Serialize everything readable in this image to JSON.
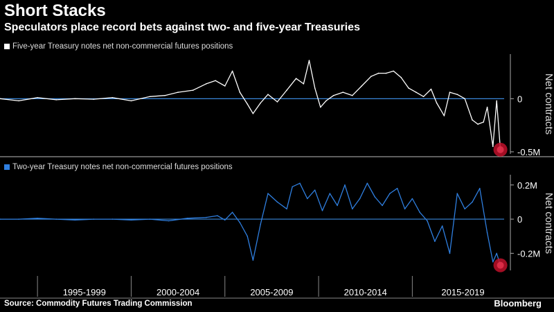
{
  "title": "Short Stacks",
  "subtitle": "Speculators place record bets against two- and five-year Treasuries",
  "source": "Source: Commodity Futures Trading Commission",
  "brand": "Bloomberg",
  "colors": {
    "background": "#000000",
    "five_year": "#ffffff",
    "two_year": "#2f7fe0",
    "zero_line": "#3a86d9",
    "marker": "#c0102a"
  },
  "chart_data": [
    {
      "type": "line",
      "legend": "Five-year Treasury notes net non-commercial futures positions",
      "ylabel": "Net contracts",
      "yticks": [
        {
          "value": 0,
          "label": "0"
        },
        {
          "value": -500000,
          "label": "-0.5M"
        }
      ],
      "ylim": [
        -520000,
        420000
      ],
      "x_range": [
        1992.0,
        2018.9
      ],
      "x": [
        1992.0,
        1993.0,
        1994.0,
        1995.0,
        1996.0,
        1997.0,
        1998.0,
        1999.0,
        2000.0,
        2000.8,
        2001.5,
        2002.3,
        2003.0,
        2003.5,
        2004.0,
        2004.4,
        2004.8,
        2005.2,
        2005.5,
        2005.9,
        2006.3,
        2006.8,
        2007.3,
        2007.8,
        2008.2,
        2008.5,
        2008.8,
        2009.1,
        2009.4,
        2009.8,
        2010.3,
        2010.8,
        2011.3,
        2011.8,
        2012.2,
        2012.6,
        2013.0,
        2013.4,
        2013.8,
        2014.2,
        2014.6,
        2015.0,
        2015.3,
        2015.7,
        2016.0,
        2016.4,
        2016.8,
        2017.2,
        2017.5,
        2017.8,
        2018.0,
        2018.3,
        2018.5,
        2018.7
      ],
      "values": [
        0,
        -20000,
        10000,
        -10000,
        0,
        -5000,
        10000,
        -20000,
        20000,
        30000,
        60000,
        80000,
        140000,
        170000,
        120000,
        260000,
        60000,
        -50000,
        -140000,
        -40000,
        40000,
        -30000,
        80000,
        190000,
        140000,
        360000,
        100000,
        -80000,
        -20000,
        30000,
        60000,
        30000,
        120000,
        210000,
        240000,
        240000,
        260000,
        200000,
        100000,
        60000,
        20000,
        90000,
        -40000,
        -160000,
        60000,
        40000,
        0,
        -200000,
        -240000,
        -220000,
        -80000,
        -450000,
        -20000,
        -480000
      ],
      "marker": {
        "x": 2018.7,
        "value": -480000
      }
    },
    {
      "type": "line",
      "legend": "Two-year Treasury notes net non-commercial futures positions",
      "ylabel": "Net contracts",
      "yticks": [
        {
          "value": 200000,
          "label": "0.2M"
        },
        {
          "value": 0,
          "label": "0"
        },
        {
          "value": -200000,
          "label": "-0.2M"
        }
      ],
      "ylim": [
        -300000,
        260000
      ],
      "x_range": [
        1992.0,
        2018.9
      ],
      "x": [
        1992.0,
        1993.0,
        1994.0,
        1995.0,
        1996.0,
        1997.0,
        1998.0,
        1999.0,
        2000.0,
        2001.0,
        2002.0,
        2003.0,
        2003.6,
        2004.0,
        2004.4,
        2004.8,
        2005.2,
        2005.5,
        2005.9,
        2006.3,
        2006.8,
        2007.3,
        2007.6,
        2008.0,
        2008.4,
        2008.8,
        2009.2,
        2009.6,
        2010.0,
        2010.4,
        2010.8,
        2011.2,
        2011.6,
        2012.0,
        2012.4,
        2012.8,
        2013.2,
        2013.6,
        2014.0,
        2014.4,
        2014.8,
        2015.2,
        2015.6,
        2016.0,
        2016.4,
        2016.8,
        2017.2,
        2017.6,
        2018.0,
        2018.3,
        2018.5,
        2018.7
      ],
      "values": [
        0,
        0,
        5000,
        0,
        -5000,
        0,
        0,
        -5000,
        0,
        -10000,
        5000,
        10000,
        20000,
        -5000,
        40000,
        -20000,
        -100000,
        -240000,
        -30000,
        150000,
        100000,
        60000,
        190000,
        210000,
        120000,
        170000,
        50000,
        150000,
        80000,
        200000,
        60000,
        120000,
        210000,
        130000,
        80000,
        150000,
        180000,
        60000,
        120000,
        40000,
        -10000,
        -130000,
        -40000,
        -200000,
        150000,
        60000,
        100000,
        180000,
        -80000,
        -250000,
        -200000,
        -270000
      ],
      "marker": {
        "x": 2018.7,
        "value": -270000
      }
    }
  ],
  "x_axis": {
    "labels": [
      "1995-1999",
      "2000-2004",
      "2005-2009",
      "2010-2014",
      "2015-2019"
    ],
    "dividers": [
      1994.0,
      1999.0,
      2004.0,
      2009.0,
      2014.0
    ]
  }
}
